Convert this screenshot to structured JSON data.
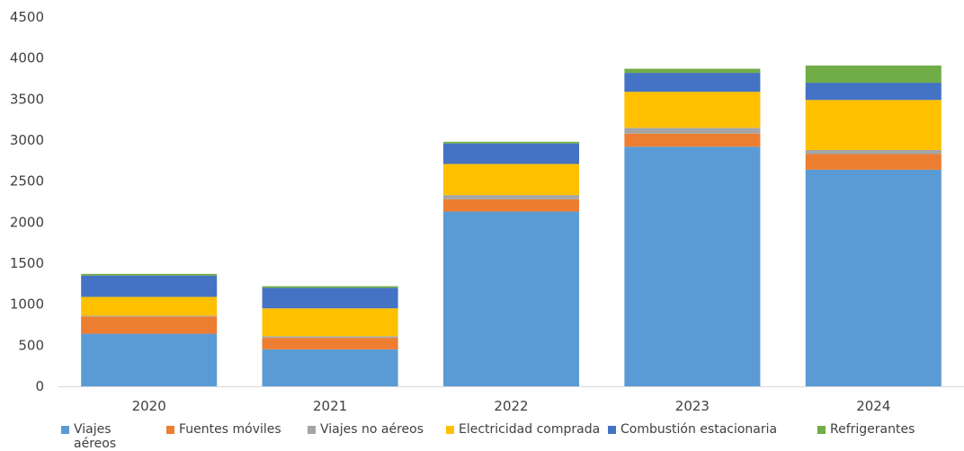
{
  "chart_data": {
    "type": "bar",
    "stacked": true,
    "categories": [
      "2020",
      "2021",
      "2022",
      "2023",
      "2024"
    ],
    "series": [
      {
        "name": "Viajes aéreos",
        "color": "#5B9BD5",
        "values": [
          640,
          450,
          2130,
          2920,
          2640
        ]
      },
      {
        "name": "Fuentes móviles",
        "color": "#ED7D31",
        "values": [
          210,
          140,
          150,
          160,
          190
        ]
      },
      {
        "name": "Viajes no aéreos",
        "color": "#A5A5A5",
        "values": [
          10,
          20,
          50,
          70,
          50
        ]
      },
      {
        "name": "Electricidad comprada",
        "color": "#FFC000",
        "values": [
          230,
          340,
          380,
          440,
          610
        ]
      },
      {
        "name": "Combustión estacionaria",
        "color": "#4472C4",
        "values": [
          260,
          250,
          250,
          230,
          210
        ]
      },
      {
        "name": "Refrigerantes",
        "color": "#70AD47",
        "values": [
          20,
          20,
          20,
          50,
          210
        ]
      }
    ],
    "yticks": [
      0,
      500,
      1000,
      1500,
      2000,
      2500,
      3000,
      3500,
      4000,
      4500
    ],
    "ylim": [
      0,
      4500
    ],
    "grid": false,
    "legend_position": "bottom",
    "title": "",
    "xlabel": "",
    "ylabel": ""
  }
}
